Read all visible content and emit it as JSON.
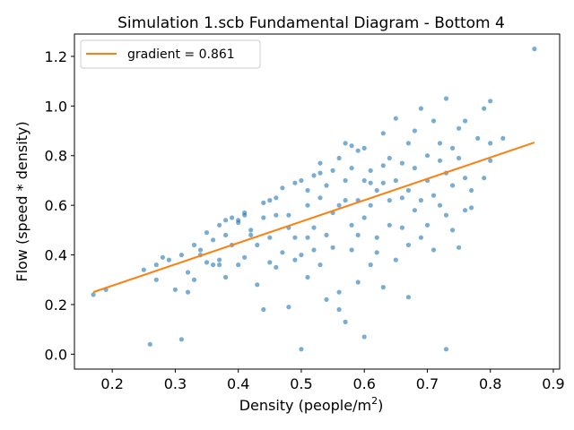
{
  "chart_data": {
    "type": "scatter",
    "title": "Simulation 1.scb Fundamental Diagram - Bottom 4",
    "xlabel_main": "Density (people/m",
    "xlabel_sup": "2",
    "xlabel_close": ")",
    "ylabel": "Flow (speed * density)",
    "xlim": [
      0.14,
      0.91
    ],
    "ylim": [
      -0.06,
      1.29
    ],
    "xticks": [
      0.2,
      0.3,
      0.4,
      0.5,
      0.6,
      0.7,
      0.8,
      0.9
    ],
    "xtick_labels": [
      "0.2",
      "0.3",
      "0.4",
      "0.5",
      "0.6",
      "0.7",
      "0.8",
      "0.9"
    ],
    "yticks": [
      0.0,
      0.2,
      0.4,
      0.6,
      0.8,
      1.0,
      1.2
    ],
    "ytick_labels": [
      "0.0",
      "0.2",
      "0.4",
      "0.6",
      "0.8",
      "1.0",
      "1.2"
    ],
    "grid": false,
    "legend_position": "top-left",
    "legend_label": "gradient = 0.861",
    "point_color": "#1f77b4",
    "line_color": "#ff7f0e",
    "fit_line": {
      "x": [
        0.17,
        0.87
      ],
      "y": [
        0.25,
        0.853
      ]
    },
    "points": [
      [
        0.17,
        0.24
      ],
      [
        0.19,
        0.26
      ],
      [
        0.25,
        0.34
      ],
      [
        0.26,
        0.04
      ],
      [
        0.27,
        0.36
      ],
      [
        0.27,
        0.3
      ],
      [
        0.28,
        0.39
      ],
      [
        0.29,
        0.38
      ],
      [
        0.3,
        0.26
      ],
      [
        0.31,
        0.4
      ],
      [
        0.31,
        0.06
      ],
      [
        0.32,
        0.25
      ],
      [
        0.32,
        0.33
      ],
      [
        0.33,
        0.3
      ],
      [
        0.33,
        0.44
      ],
      [
        0.34,
        0.4
      ],
      [
        0.34,
        0.42
      ],
      [
        0.35,
        0.37
      ],
      [
        0.35,
        0.49
      ],
      [
        0.36,
        0.36
      ],
      [
        0.36,
        0.46
      ],
      [
        0.37,
        0.38
      ],
      [
        0.37,
        0.36
      ],
      [
        0.37,
        0.52
      ],
      [
        0.38,
        0.48
      ],
      [
        0.38,
        0.31
      ],
      [
        0.38,
        0.54
      ],
      [
        0.39,
        0.55
      ],
      [
        0.39,
        0.44
      ],
      [
        0.4,
        0.53
      ],
      [
        0.4,
        0.54
      ],
      [
        0.4,
        0.36
      ],
      [
        0.41,
        0.56
      ],
      [
        0.41,
        0.39
      ],
      [
        0.41,
        0.57
      ],
      [
        0.42,
        0.48
      ],
      [
        0.42,
        0.5
      ],
      [
        0.43,
        0.28
      ],
      [
        0.43,
        0.44
      ],
      [
        0.44,
        0.61
      ],
      [
        0.44,
        0.18
      ],
      [
        0.44,
        0.55
      ],
      [
        0.45,
        0.62
      ],
      [
        0.45,
        0.47
      ],
      [
        0.45,
        0.37
      ],
      [
        0.46,
        0.63
      ],
      [
        0.46,
        0.35
      ],
      [
        0.46,
        0.56
      ],
      [
        0.47,
        0.41
      ],
      [
        0.47,
        0.67
      ],
      [
        0.48,
        0.56
      ],
      [
        0.48,
        0.19
      ],
      [
        0.48,
        0.51
      ],
      [
        0.49,
        0.47
      ],
      [
        0.49,
        0.69
      ],
      [
        0.49,
        0.38
      ],
      [
        0.5,
        0.7
      ],
      [
        0.5,
        0.02
      ],
      [
        0.5,
        0.4
      ],
      [
        0.51,
        0.66
      ],
      [
        0.51,
        0.31
      ],
      [
        0.51,
        0.6
      ],
      [
        0.51,
        0.47
      ],
      [
        0.52,
        0.72
      ],
      [
        0.52,
        0.51
      ],
      [
        0.52,
        0.42
      ],
      [
        0.53,
        0.73
      ],
      [
        0.53,
        0.77
      ],
      [
        0.53,
        0.63
      ],
      [
        0.53,
        0.36
      ],
      [
        0.54,
        0.48
      ],
      [
        0.54,
        0.22
      ],
      [
        0.54,
        0.68
      ],
      [
        0.55,
        0.74
      ],
      [
        0.55,
        0.57
      ],
      [
        0.55,
        0.43
      ],
      [
        0.56,
        0.79
      ],
      [
        0.56,
        0.18
      ],
      [
        0.56,
        0.25
      ],
      [
        0.56,
        0.6
      ],
      [
        0.57,
        0.13
      ],
      [
        0.57,
        0.7
      ],
      [
        0.57,
        0.62
      ],
      [
        0.57,
        0.85
      ],
      [
        0.58,
        0.84
      ],
      [
        0.58,
        0.52
      ],
      [
        0.58,
        0.42
      ],
      [
        0.58,
        0.75
      ],
      [
        0.59,
        0.82
      ],
      [
        0.59,
        0.48
      ],
      [
        0.59,
        0.62
      ],
      [
        0.59,
        0.29
      ],
      [
        0.6,
        0.83
      ],
      [
        0.6,
        0.55
      ],
      [
        0.6,
        0.7
      ],
      [
        0.6,
        0.07
      ],
      [
        0.61,
        0.69
      ],
      [
        0.61,
        0.36
      ],
      [
        0.61,
        0.74
      ],
      [
        0.61,
        0.6
      ],
      [
        0.62,
        0.47
      ],
      [
        0.62,
        0.66
      ],
      [
        0.62,
        0.41
      ],
      [
        0.63,
        0.76
      ],
      [
        0.63,
        0.69
      ],
      [
        0.63,
        0.89
      ],
      [
        0.63,
        0.27
      ],
      [
        0.64,
        0.52
      ],
      [
        0.64,
        0.62
      ],
      [
        0.64,
        0.79
      ],
      [
        0.65,
        0.38
      ],
      [
        0.65,
        0.7
      ],
      [
        0.65,
        0.95
      ],
      [
        0.66,
        0.51
      ],
      [
        0.66,
        0.63
      ],
      [
        0.66,
        0.77
      ],
      [
        0.67,
        0.44
      ],
      [
        0.67,
        0.23
      ],
      [
        0.67,
        0.66
      ],
      [
        0.67,
        0.85
      ],
      [
        0.68,
        0.58
      ],
      [
        0.68,
        0.9
      ],
      [
        0.68,
        0.75
      ],
      [
        0.69,
        0.47
      ],
      [
        0.69,
        0.62
      ],
      [
        0.69,
        0.99
      ],
      [
        0.7,
        0.8
      ],
      [
        0.7,
        0.7
      ],
      [
        0.7,
        0.52
      ],
      [
        0.71,
        0.94
      ],
      [
        0.71,
        0.64
      ],
      [
        0.71,
        0.42
      ],
      [
        0.72,
        0.78
      ],
      [
        0.72,
        0.85
      ],
      [
        0.72,
        0.6
      ],
      [
        0.73,
        1.03
      ],
      [
        0.73,
        0.73
      ],
      [
        0.73,
        0.02
      ],
      [
        0.73,
        0.56
      ],
      [
        0.74,
        0.83
      ],
      [
        0.74,
        0.68
      ],
      [
        0.74,
        0.5
      ],
      [
        0.75,
        0.91
      ],
      [
        0.75,
        0.79
      ],
      [
        0.75,
        0.43
      ],
      [
        0.76,
        0.94
      ],
      [
        0.76,
        0.58
      ],
      [
        0.76,
        0.71
      ],
      [
        0.77,
        0.66
      ],
      [
        0.77,
        0.59
      ],
      [
        0.78,
        0.87
      ],
      [
        0.79,
        0.99
      ],
      [
        0.79,
        0.71
      ],
      [
        0.8,
        0.85
      ],
      [
        0.8,
        0.78
      ],
      [
        0.8,
        1.02
      ],
      [
        0.82,
        0.87
      ],
      [
        0.87,
        1.23
      ]
    ]
  }
}
